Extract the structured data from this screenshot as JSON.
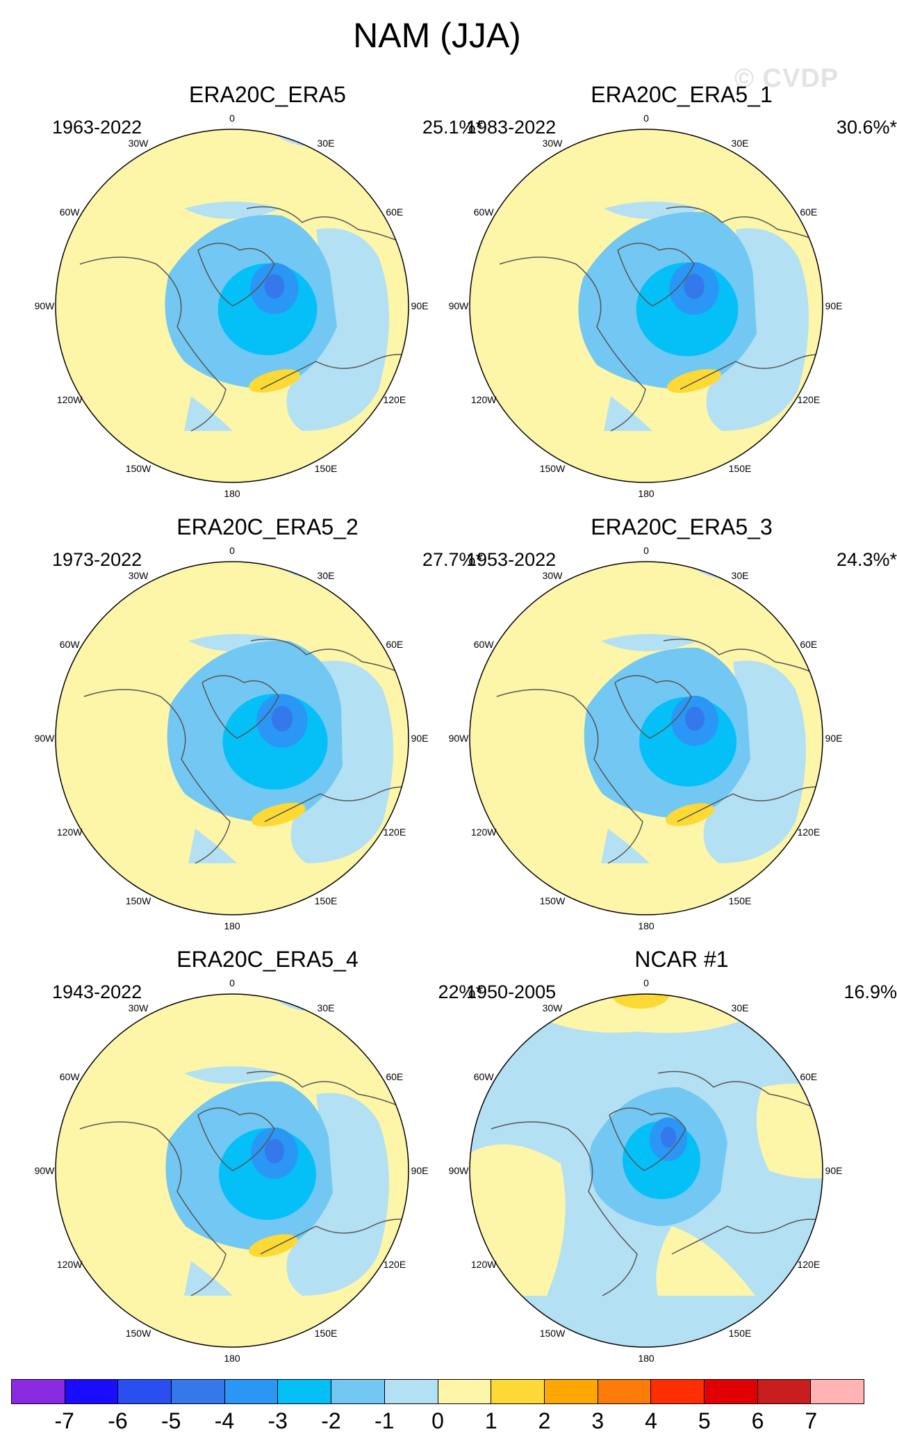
{
  "figure": {
    "title": "NAM (JJA)",
    "watermark": "© CVDP"
  },
  "panels": [
    {
      "title": "ERA20C_ERA5",
      "years": "1963-2022",
      "pct": "25.1%*"
    },
    {
      "title": "ERA20C_ERA5_1",
      "years": "1983-2022",
      "pct": "30.6%*"
    },
    {
      "title": "ERA20C_ERA5_2",
      "years": "1973-2022",
      "pct": "27.7%*"
    },
    {
      "title": "ERA20C_ERA5_3",
      "years": "1953-2022",
      "pct": "24.3%*"
    },
    {
      "title": "ERA20C_ERA5_4",
      "years": "1943-2022",
      "pct": "22%*"
    },
    {
      "title": "NCAR #1",
      "years": "1950-2005",
      "pct": "16.9%"
    }
  ],
  "longitude_labels": [
    "180",
    "150E",
    "120E",
    "90E",
    "60E",
    "30E",
    "0",
    "30W",
    "60W",
    "90W",
    "120W",
    "150W"
  ],
  "colorbar": {
    "labels": [
      "-7",
      "-6",
      "-5",
      "-4",
      "-3",
      "-2",
      "-1",
      "0",
      "1",
      "2",
      "3",
      "4",
      "5",
      "6",
      "7"
    ],
    "colors": [
      "#8a2be2",
      "#1a0dff",
      "#2a4ff0",
      "#3478ec",
      "#2a96f5",
      "#04c0f7",
      "#72c8f2",
      "#b4e0f4",
      "#fdf6a8",
      "#fcd934",
      "#fda802",
      "#fb7c09",
      "#fe2e03",
      "#e10003",
      "#c91e1f",
      "#ffb3b3"
    ]
  }
}
